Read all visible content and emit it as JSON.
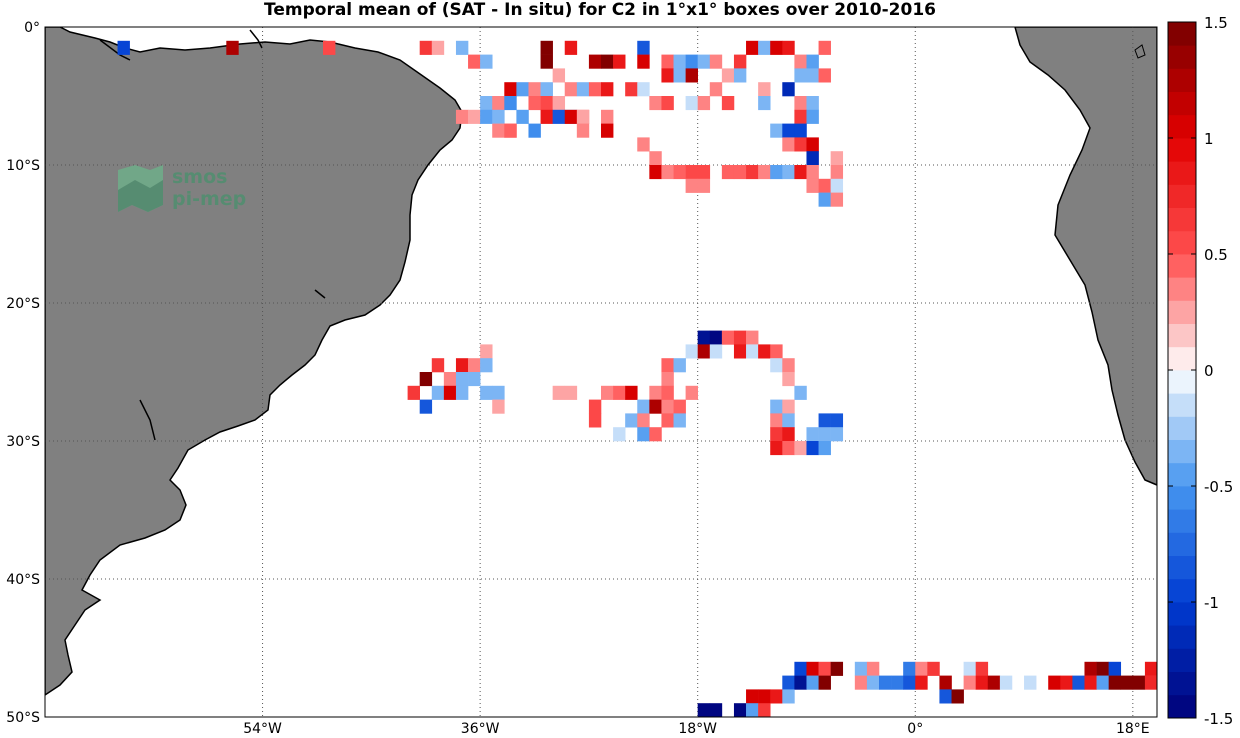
{
  "title": "Temporal mean of (SAT - In situ) for C2 in 1°x1° boxes over 2010-2016",
  "logo": {
    "line1": "smos",
    "line2": "pi-mep",
    "color": "#4f8f6f"
  },
  "colors": {
    "land": "#808080",
    "ocean": "#ffffff",
    "grid": "#555555"
  },
  "axes": {
    "lon_range": [
      -72,
      20
    ],
    "lat_range": [
      -50,
      0
    ],
    "lon_ticks": [
      {
        "value": -54,
        "label": "54°W"
      },
      {
        "value": -36,
        "label": "36°W"
      },
      {
        "value": -18,
        "label": "18°W"
      },
      {
        "value": 0,
        "label": "0°"
      },
      {
        "value": 18,
        "label": "18°E"
      }
    ],
    "lat_ticks": [
      {
        "value": 0,
        "label": "0°"
      },
      {
        "value": -10,
        "label": "10°S"
      },
      {
        "value": -20,
        "label": "20°S"
      },
      {
        "value": -30,
        "label": "30°S"
      },
      {
        "value": -40,
        "label": "40°S"
      },
      {
        "value": -50,
        "label": "50°S"
      }
    ]
  },
  "colorbar": {
    "min": -1.5,
    "max": 1.5,
    "ticks": [
      {
        "value": 1.5,
        "label": "1.5"
      },
      {
        "value": 1,
        "label": "1"
      },
      {
        "value": 0.5,
        "label": "0.5"
      },
      {
        "value": 0,
        "label": "0"
      },
      {
        "value": -0.5,
        "label": "-0.5"
      },
      {
        "value": -1,
        "label": "-1"
      },
      {
        "value": -1.5,
        "label": "-1.5"
      }
    ]
  },
  "chart_data": {
    "type": "heatmap",
    "cell_size_deg": 1,
    "value_range": [
      -1.5,
      1.5
    ],
    "cells": [
      [
        -66,
        -1,
        -1.0
      ],
      [
        -57,
        -1,
        1.3
      ],
      [
        -49,
        -1,
        0.5
      ],
      [
        -41,
        -1,
        0.6
      ],
      [
        -40,
        -1,
        0.2
      ],
      [
        -38,
        -1,
        -0.3
      ],
      [
        -37,
        -2,
        0.4
      ],
      [
        -36,
        -2,
        -0.4
      ],
      [
        -31,
        -1,
        1.4
      ],
      [
        -31,
        -2,
        1.4
      ],
      [
        -29,
        -1,
        0.8
      ],
      [
        -27,
        -2,
        1.3
      ],
      [
        -26,
        -2,
        1.5
      ],
      [
        -25,
        -2,
        0.9
      ],
      [
        -23,
        -1,
        -0.8
      ],
      [
        -23,
        -2,
        1.0
      ],
      [
        -21,
        -2,
        0.4
      ],
      [
        -20,
        -2,
        -0.3
      ],
      [
        -19,
        -2,
        -0.6
      ],
      [
        -18,
        -2,
        -0.3
      ],
      [
        -17,
        -2,
        0.3
      ],
      [
        -15,
        -2,
        0.6
      ],
      [
        -14,
        -1,
        1.0
      ],
      [
        -13,
        -1,
        -0.3
      ],
      [
        -12,
        -1,
        1.0
      ],
      [
        -11,
        -1,
        0.8
      ],
      [
        -10,
        -2,
        0.3
      ],
      [
        -9,
        -2,
        -0.5
      ],
      [
        -8,
        -1,
        0.4
      ],
      [
        -34,
        -4,
        1.0
      ],
      [
        -33,
        -4,
        -0.5
      ],
      [
        -32,
        -4,
        0.3
      ],
      [
        -31,
        -4,
        -0.4
      ],
      [
        -30,
        -3,
        0.2
      ],
      [
        -29,
        -4,
        0.3
      ],
      [
        -28,
        -4,
        -0.3
      ],
      [
        -27,
        -4,
        0.4
      ],
      [
        -26,
        -4,
        0.8
      ],
      [
        -24,
        -4,
        0.6
      ],
      [
        -23,
        -4,
        -0.2
      ],
      [
        -21,
        -3,
        0.9
      ],
      [
        -20,
        -3,
        -0.3
      ],
      [
        -19,
        -3,
        1.2
      ],
      [
        -16,
        -3,
        0.2
      ],
      [
        -15,
        -3,
        -0.3
      ],
      [
        -13,
        -4,
        0.2
      ],
      [
        -11,
        -4,
        -1.2
      ],
      [
        -9,
        -3,
        -0.3
      ],
      [
        -8,
        -3,
        0.4
      ],
      [
        -10,
        -3,
        -0.4
      ],
      [
        -36,
        -5,
        -0.3
      ],
      [
        -35,
        -5,
        0.3
      ],
      [
        -34,
        -5,
        -0.6
      ],
      [
        -32,
        -5,
        0.4
      ],
      [
        -31,
        -5,
        0.5
      ],
      [
        -30,
        -5,
        0.2
      ],
      [
        -29,
        -6,
        -0.4
      ],
      [
        -28,
        -6,
        0.3
      ],
      [
        -22,
        -5,
        0.3
      ],
      [
        -21,
        -5,
        0.5
      ],
      [
        -19,
        -5,
        -0.2
      ],
      [
        -18,
        -5,
        0.3
      ],
      [
        -17,
        -4,
        0.3
      ],
      [
        -16,
        -5,
        0.5
      ],
      [
        -13,
        -5,
        -0.3
      ],
      [
        -10,
        -5,
        0.3
      ],
      [
        -9,
        -5,
        -0.3
      ],
      [
        -38,
        -6,
        0.3
      ],
      [
        -37,
        -6,
        0.2
      ],
      [
        -36,
        -6,
        -0.5
      ],
      [
        -35,
        -6,
        -0.4
      ],
      [
        -34,
        -7,
        0.3
      ],
      [
        -33,
        -6,
        -0.5
      ],
      [
        -31,
        -6,
        0.8
      ],
      [
        -30,
        -6,
        -0.8
      ],
      [
        -29,
        -6,
        1.0
      ],
      [
        -28,
        -6,
        0.2
      ],
      [
        -26,
        -7,
        0.2
      ],
      [
        -26,
        -6,
        0.3
      ],
      [
        -10,
        -6,
        0.6
      ],
      [
        -9,
        -6,
        -0.5
      ],
      [
        -35,
        -7,
        0.3
      ],
      [
        -34,
        -7,
        0.4
      ],
      [
        -32,
        -7,
        -0.6
      ],
      [
        -28,
        -7,
        0.3
      ],
      [
        -26,
        -7,
        1.0
      ],
      [
        -12,
        -7,
        -0.3
      ],
      [
        -11,
        -7,
        -0.9
      ],
      [
        -10,
        -7,
        -0.9
      ],
      [
        -11,
        -8,
        0.3
      ],
      [
        -10,
        -8,
        0.6
      ],
      [
        -9,
        -8,
        1.0
      ],
      [
        -23,
        -8,
        0.3
      ],
      [
        -22,
        -9,
        0.3
      ],
      [
        -9,
        -9,
        -1.2
      ],
      [
        -7,
        -9,
        0.2
      ],
      [
        -22,
        -10,
        1.0
      ],
      [
        -21,
        -10,
        0.3
      ],
      [
        -20,
        -10,
        0.4
      ],
      [
        -19,
        -10,
        0.5
      ],
      [
        -18,
        -10,
        0.5
      ],
      [
        -16,
        -10,
        0.4
      ],
      [
        -15,
        -10,
        0.4
      ],
      [
        -14,
        -10,
        0.6
      ],
      [
        -13,
        -10,
        0.3
      ],
      [
        -12,
        -10,
        -0.5
      ],
      [
        -11,
        -10,
        -0.3
      ],
      [
        -10,
        -10,
        0.9
      ],
      [
        -9,
        -10,
        0.3
      ],
      [
        -7,
        -10,
        0.3
      ],
      [
        -19,
        -11,
        0.3
      ],
      [
        -18,
        -11,
        0.3
      ],
      [
        -9,
        -11,
        0.3
      ],
      [
        -8,
        -11,
        0.4
      ],
      [
        -7,
        -11,
        -0.2
      ],
      [
        -8,
        -12,
        -0.5
      ],
      [
        -7,
        -12,
        0.3
      ],
      [
        -36,
        -23,
        0.2
      ],
      [
        -40,
        -24,
        0.6
      ],
      [
        -38,
        -24,
        0.8
      ],
      [
        -37,
        -24,
        0.3
      ],
      [
        -36,
        -24,
        -0.3
      ],
      [
        -41,
        -25,
        1.5
      ],
      [
        -39,
        -25,
        0.3
      ],
      [
        -38,
        -25,
        -0.4
      ],
      [
        -37,
        -25,
        -0.4
      ],
      [
        -42,
        -26,
        0.6
      ],
      [
        -40,
        -26,
        -0.4
      ],
      [
        -39,
        -26,
        1.0
      ],
      [
        -38,
        -26,
        -0.4
      ],
      [
        -36,
        -26,
        -0.3
      ],
      [
        -35,
        -26,
        -0.3
      ],
      [
        -41,
        -27,
        -0.8
      ],
      [
        -35,
        -27,
        0.2
      ],
      [
        -30,
        -26,
        0.2
      ],
      [
        -29,
        -26,
        0.2
      ],
      [
        -26,
        -26,
        0.3
      ],
      [
        -25,
        -26,
        0.4
      ],
      [
        -24,
        -26,
        1.0
      ],
      [
        -22,
        -26,
        0.3
      ],
      [
        -27,
        -27,
        0.5
      ],
      [
        -27,
        -28,
        0.5
      ],
      [
        -23,
        -27,
        -0.3
      ],
      [
        -22,
        -27,
        1.2
      ],
      [
        -21,
        -27,
        0.3
      ],
      [
        -20,
        -27,
        0.4
      ],
      [
        -21,
        -28,
        0.4
      ],
      [
        -20,
        -28,
        -0.4
      ],
      [
        -24,
        -28,
        -0.3
      ],
      [
        -23,
        -28,
        0.3
      ],
      [
        -23,
        -29,
        -0.5
      ],
      [
        -22,
        -29,
        0.4
      ],
      [
        -25,
        -29,
        -0.2
      ],
      [
        -18,
        -22,
        -1.3
      ],
      [
        -17,
        -22,
        -1.6
      ],
      [
        -16,
        -22,
        0.4
      ],
      [
        -15,
        -22,
        0.6
      ],
      [
        -14,
        -22,
        0.3
      ],
      [
        -19,
        -23,
        -0.2
      ],
      [
        -18,
        -23,
        1.3
      ],
      [
        -17,
        -23,
        -0.2
      ],
      [
        -15,
        -23,
        0.8
      ],
      [
        -14,
        -23,
        -0.2
      ],
      [
        -13,
        -23,
        0.9
      ],
      [
        -12,
        -23,
        0.4
      ],
      [
        -21,
        -24,
        0.4
      ],
      [
        -20,
        -24,
        -0.3
      ],
      [
        -12,
        -24,
        -0.2
      ],
      [
        -11,
        -24,
        0.3
      ],
      [
        -21,
        -25,
        0.3
      ],
      [
        -11,
        -25,
        0.2
      ],
      [
        -21,
        -26,
        0.4
      ],
      [
        -10,
        -26,
        -0.3
      ],
      [
        -19,
        -26,
        0.3
      ],
      [
        -12,
        -27,
        -0.3
      ],
      [
        -11,
        -27,
        0.2
      ],
      [
        -12,
        -28,
        0.3
      ],
      [
        -11,
        -28,
        -0.3
      ],
      [
        -8,
        -28,
        -0.8
      ],
      [
        -7,
        -28,
        -0.8
      ],
      [
        -12,
        -29,
        0.6
      ],
      [
        -11,
        -29,
        0.8
      ],
      [
        -9,
        -29,
        -0.3
      ],
      [
        -8,
        -29,
        -0.4
      ],
      [
        -7,
        -29,
        -0.3
      ],
      [
        -12,
        -30,
        0.8
      ],
      [
        -11,
        -30,
        0.4
      ],
      [
        -10,
        -30,
        0.2
      ],
      [
        -9,
        -30,
        -0.9
      ],
      [
        -8,
        -30,
        -0.5
      ],
      [
        -10,
        -46,
        -1.0
      ],
      [
        -9,
        -46,
        1.0
      ],
      [
        -8,
        -46,
        0.5
      ],
      [
        -7,
        -46,
        1.4
      ],
      [
        -5,
        -46,
        -0.4
      ],
      [
        -4,
        -46,
        0.3
      ],
      [
        -1,
        -46,
        -0.7
      ],
      [
        0,
        -46,
        0.3
      ],
      [
        1,
        -46,
        0.6
      ],
      [
        4,
        -46,
        -0.2
      ],
      [
        5,
        -46,
        0.6
      ],
      [
        14,
        -46,
        1.2
      ],
      [
        15,
        -46,
        1.4
      ],
      [
        16,
        -46,
        -1.0
      ],
      [
        19,
        -46,
        0.9
      ],
      [
        -11,
        -47,
        -0.8
      ],
      [
        -10,
        -47,
        -1.3
      ],
      [
        -9,
        -47,
        -0.5
      ],
      [
        -8,
        -47,
        1.4
      ],
      [
        -5,
        -47,
        0.3
      ],
      [
        -4,
        -47,
        -0.3
      ],
      [
        -3,
        -47,
        -0.7
      ],
      [
        -2,
        -47,
        -0.7
      ],
      [
        -1,
        -47,
        -0.8
      ],
      [
        0,
        -47,
        0.9
      ],
      [
        2,
        -47,
        1.3
      ],
      [
        4,
        -47,
        0.3
      ],
      [
        5,
        -47,
        0.8
      ],
      [
        6,
        -47,
        1.3
      ],
      [
        7,
        -47,
        -0.2
      ],
      [
        9,
        -47,
        -0.2
      ],
      [
        11,
        -47,
        1.0
      ],
      [
        12,
        -47,
        0.8
      ],
      [
        13,
        -47,
        -0.8
      ],
      [
        14,
        -47,
        0.9
      ],
      [
        15,
        -47,
        -0.5
      ],
      [
        16,
        -47,
        1.4
      ],
      [
        17,
        -47,
        1.4
      ],
      [
        18,
        -47,
        1.4
      ],
      [
        19,
        -47,
        0.7
      ],
      [
        2,
        -48,
        -0.8
      ],
      [
        3,
        -48,
        1.4
      ],
      [
        -14,
        -48,
        1.0
      ],
      [
        -13,
        -48,
        1.0
      ],
      [
        -12,
        -48,
        0.8
      ],
      [
        -11,
        -48,
        -0.4
      ],
      [
        -18,
        -49,
        -1.6
      ],
      [
        -17,
        -49,
        -1.6
      ],
      [
        -15,
        -49,
        -1.5
      ],
      [
        -14,
        -49,
        -0.5
      ],
      [
        -13,
        -49,
        0.6
      ],
      [
        -18,
        -50,
        -0.2
      ]
    ]
  }
}
